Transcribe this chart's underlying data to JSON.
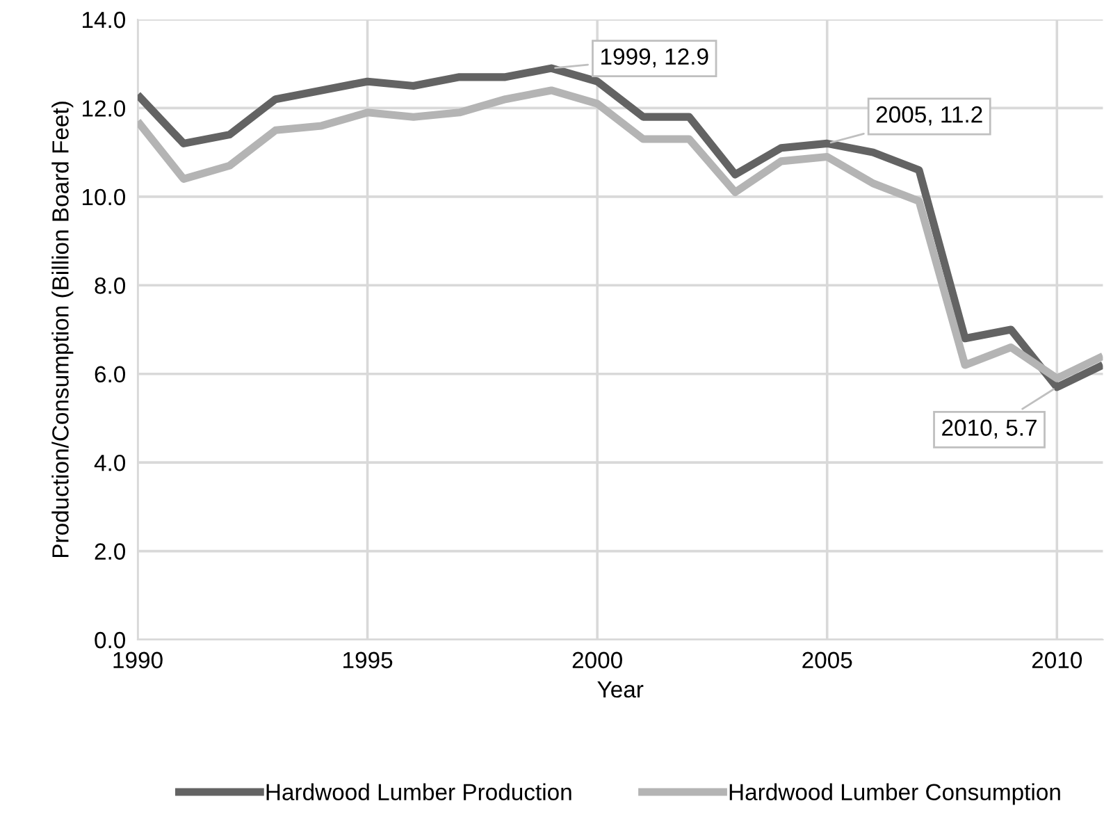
{
  "chart_data": {
    "type": "line",
    "xlabel": "Year",
    "ylabel": "Production/Consumption (Billion Board Feet)",
    "x": [
      1990,
      1991,
      1992,
      1993,
      1994,
      1995,
      1996,
      1997,
      1998,
      1999,
      2000,
      2001,
      2002,
      2003,
      2004,
      2005,
      2006,
      2007,
      2008,
      2009,
      2010,
      2011
    ],
    "series": [
      {
        "name": "Hardwood Lumber Production",
        "color": "#636363",
        "values": [
          12.3,
          11.2,
          11.4,
          12.2,
          12.4,
          12.6,
          12.5,
          12.7,
          12.7,
          12.9,
          12.6,
          11.8,
          11.8,
          10.5,
          11.1,
          11.2,
          11.0,
          10.6,
          6.8,
          7.0,
          5.7,
          6.2
        ]
      },
      {
        "name": "Hardwood Lumber Consumption",
        "color": "#b4b4b4",
        "values": [
          11.7,
          10.4,
          10.7,
          11.5,
          11.6,
          11.9,
          11.8,
          11.9,
          12.2,
          12.4,
          12.1,
          11.3,
          11.3,
          10.1,
          10.8,
          10.9,
          10.3,
          9.9,
          6.2,
          6.6,
          5.9,
          6.4
        ]
      }
    ],
    "xlim": [
      1990,
      2011
    ],
    "xticks": [
      1990,
      1995,
      2000,
      2005,
      2010
    ],
    "ylim": [
      0,
      14
    ],
    "yticks": [
      {
        "value": 0,
        "label": "0.0"
      },
      {
        "value": 2,
        "label": "2.0"
      },
      {
        "value": 4,
        "label": "4.0"
      },
      {
        "value": 6,
        "label": "6.0"
      },
      {
        "value": 8,
        "label": "8.0"
      },
      {
        "value": 10,
        "label": "10.0"
      },
      {
        "value": 12,
        "label": "12.0"
      },
      {
        "value": 14,
        "label": "14.0"
      }
    ],
    "annotations": [
      {
        "text": "1999, 12.9",
        "x": 1999,
        "y": 12.9
      },
      {
        "text": "2005, 11.2",
        "x": 2005,
        "y": 11.2
      },
      {
        "text": "2010, 5.7",
        "x": 2010,
        "y": 5.7
      }
    ],
    "grid": true,
    "legend": "bottom",
    "marker": "none",
    "line_style": "solid"
  }
}
